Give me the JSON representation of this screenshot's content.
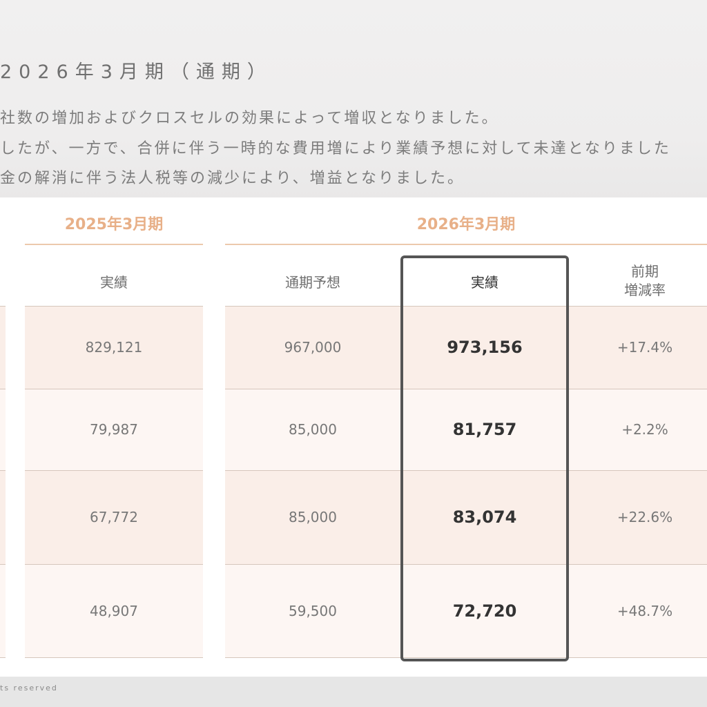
{
  "heading": "2026年3月期（通期）",
  "summary": [
    "社数の増加およびクロスセルの効果によって増収となりました。",
    "したが、一方で、合併に伴う一時的な費用増により業績予想に対して未達となりました",
    "金の解消に伴う法人税等の減少により、増益となりました。"
  ],
  "groups": {
    "prev": "2025年3月期",
    "curr": "2026年3月期"
  },
  "columns": {
    "prev_actual": "実績",
    "forecast": "通期予想",
    "curr_actual": "実績",
    "change_line1": "前期",
    "change_line2": "増減率"
  },
  "rows": [
    {
      "prev_actual": "829,121",
      "forecast": "967,000",
      "curr_actual": "973,156",
      "change": "+17.4%"
    },
    {
      "prev_actual": "79,987",
      "forecast": "85,000",
      "curr_actual": "81,757",
      "change": "+2.2%"
    },
    {
      "prev_actual": "67,772",
      "forecast": "85,000",
      "curr_actual": "83,074",
      "change": "+22.6%"
    },
    {
      "prev_actual": "48,907",
      "forecast": "59,500",
      "curr_actual": "72,720",
      "change": "+48.7%"
    }
  ],
  "footer": "ts reserved",
  "colors": {
    "accent": "#e8b088",
    "row_tint_dark": "#faeee8",
    "row_tint_light": "#fdf6f3",
    "highlight_border": "#555555"
  }
}
